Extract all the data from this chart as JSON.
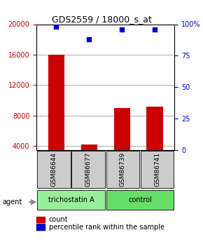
{
  "title": "GDS2559 / 18000_s_at",
  "samples": [
    "GSM86644",
    "GSM86677",
    "GSM86739",
    "GSM86741"
  ],
  "counts": [
    16000,
    4200,
    9000,
    9200
  ],
  "percentiles": [
    98,
    88,
    96,
    96
  ],
  "ylim_left": [
    3500,
    20000
  ],
  "ylim_right": [
    0,
    100
  ],
  "left_ticks": [
    4000,
    8000,
    12000,
    16000,
    20000
  ],
  "right_ticks": [
    0,
    25,
    50,
    75,
    100
  ],
  "left_tick_labels": [
    "4000",
    "8000",
    "12000",
    "16000",
    "20000"
  ],
  "right_tick_labels": [
    "0",
    "25",
    "50",
    "75",
    "100%"
  ],
  "bar_color": "#cc0000",
  "dot_color": "#0000cc",
  "groups": [
    {
      "label": "trichostatin A",
      "samples": [
        0,
        1
      ],
      "color": "#99ee99"
    },
    {
      "label": "control",
      "samples": [
        2,
        3
      ],
      "color": "#66dd66"
    }
  ],
  "agent_label": "agent",
  "legend_count_label": "count",
  "legend_pct_label": "percentile rank within the sample",
  "background_color": "#ffffff",
  "plot_bg_color": "#ffffff",
  "label_color_left": "#cc0000",
  "label_color_right": "#0000cc",
  "title_color": "#000000"
}
